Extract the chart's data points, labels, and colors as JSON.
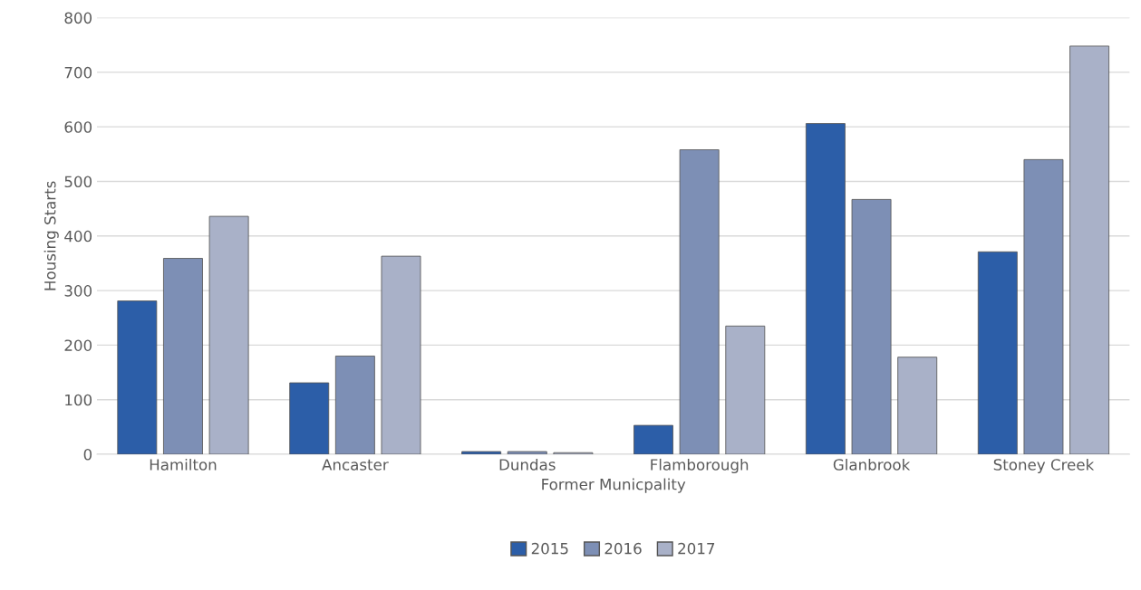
{
  "chart_data": {
    "type": "bar",
    "xlabel": "Former Municpality",
    "ylabel": "Housing Starts",
    "categories": [
      "Hamilton",
      "Ancaster",
      "Dundas",
      "Flamborough",
      "Glanbrook",
      "Stoney Creek"
    ],
    "series": [
      {
        "name": "2015",
        "color": "#2c5ea8",
        "values": [
          281,
          131,
          5,
          53,
          606,
          371
        ]
      },
      {
        "name": "2016",
        "color": "#7d8fb5",
        "values": [
          359,
          180,
          5,
          558,
          467,
          540
        ]
      },
      {
        "name": "2017",
        "color": "#a9b1c8",
        "values": [
          436,
          363,
          3,
          235,
          178,
          748
        ]
      }
    ],
    "ylim": [
      0,
      800
    ],
    "yticks": [
      0,
      100,
      200,
      300,
      400,
      500,
      600,
      700,
      800
    ],
    "grid": "y",
    "legend": "bottom"
  }
}
